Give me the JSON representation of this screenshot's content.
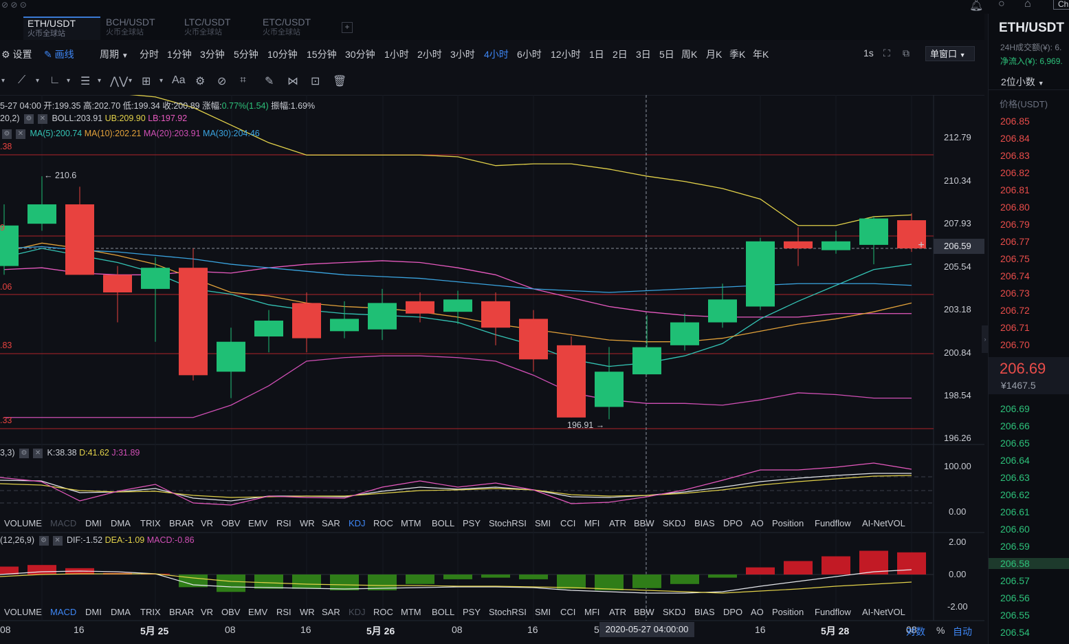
{
  "window_title": "Ch",
  "tabs": [
    {
      "pair": "ETH/USDT",
      "sub": "火币全球站",
      "active": true
    },
    {
      "pair": "BCH/USDT",
      "sub": "火币全球站",
      "active": false
    },
    {
      "pair": "LTC/USDT",
      "sub": "火币全球站",
      "active": false
    },
    {
      "pair": "ETC/USDT",
      "sub": "火币全球站",
      "active": false
    }
  ],
  "add_tab": "+",
  "toolbar": {
    "settings": "设置",
    "draw": "画线",
    "period": "周期",
    "one_s": "1s",
    "window_select": "单窗口"
  },
  "periods": [
    "分时",
    "1分钟",
    "3分钟",
    "5分钟",
    "10分钟",
    "15分钟",
    "30分钟",
    "1小时",
    "2小时",
    "3小时",
    "4小时",
    "6小时",
    "12小时",
    "1日",
    "2日",
    "3日",
    "5日",
    "周K",
    "月K",
    "季K",
    "年K"
  ],
  "selected_period": "4小时",
  "draw_tools": {
    "font": "Aa"
  },
  "ohlc": {
    "date": "5-27 04:00",
    "open_label": "开:",
    "open": "199.35",
    "high_label": "高:",
    "high": "202.70",
    "low_label": "低:",
    "low": "199.34",
    "close_label": "收:",
    "close": "200.89",
    "change_label": "涨幅:",
    "change": "0.77%(1.54)",
    "amp_label": "振幅:",
    "amp": "1.69%"
  },
  "boll": {
    "params": "20,2)",
    "boll": "BOLL:203.91",
    "ub": "UB:209.90",
    "lb": "LB:197.92"
  },
  "ma": {
    "ma5": "MA(5):200.74",
    "ma10": "MA(10):202.21",
    "ma20": "MA(20):203.91",
    "ma30": "MA(30):204.46"
  },
  "left_edge_labels": [
    ".38",
    "9",
    ".06",
    ".83",
    ".33"
  ],
  "price_axis": [
    "212.79",
    "210.34",
    "207.93",
    "206.59",
    "205.54",
    "203.18",
    "200.84",
    "198.54",
    "196.26"
  ],
  "current_price_tag": "206.59",
  "annot_high": "← 210.6",
  "annot_low": "196.91 →",
  "kdj": {
    "params": "3,3)",
    "k": "K:38.38",
    "d": "D:41.62",
    "j": "J:31.89",
    "axis": [
      "100.00",
      "0.00"
    ]
  },
  "macd": {
    "params": "(12,26,9)",
    "dif": "DIF:-1.52",
    "dea": "DEA:-1.09",
    "macd": "MACD:-0.86",
    "axis": [
      "2.00",
      "0.00",
      "-2.00"
    ]
  },
  "indicators": [
    "VOLUME",
    "MACD",
    "DMI",
    "DMA",
    "TRIX",
    "BRAR",
    "VR",
    "OBV",
    "EMV",
    "RSI",
    "WR",
    "SAR",
    "KDJ",
    "ROC",
    "MTM",
    "BOLL",
    "PSY",
    "StochRSI",
    "SMI",
    "CCI",
    "MFI",
    "ATR",
    "BBW",
    "SKDJ",
    "BIAS",
    "DPO",
    "AO",
    "Position",
    "Fundflow",
    "AI-NetVOL"
  ],
  "time_axis": [
    "08",
    "16",
    "5月 25",
    "08",
    "16",
    "5月 26",
    "08",
    "16",
    "5",
    "16",
    "5月 28",
    "08"
  ],
  "crosshair_time": "2020-05-27 04:00:00",
  "bottom_controls": {
    "log": "对数",
    "pct": "%",
    "auto": "自动"
  },
  "right_panel": {
    "pair": "ETH/USDT",
    "vol_label": "24H成交额(¥): 6.",
    "inflow_label": "净流入(¥): 6,969.",
    "decimals": "2位小数",
    "col_header": "价格(USDT)",
    "asks": [
      "206.85",
      "206.84",
      "206.83",
      "206.82",
      "206.81",
      "206.80",
      "206.79",
      "206.77",
      "206.75",
      "206.74",
      "206.73",
      "206.72",
      "206.71",
      "206.70"
    ],
    "last_price": "206.69",
    "last_cny": "¥1467.5",
    "bids": [
      "206.69",
      "206.66",
      "206.65",
      "206.64",
      "206.63",
      "206.62",
      "206.61",
      "206.60",
      "206.59",
      "206.58",
      "206.57",
      "206.56",
      "206.55",
      "206.54"
    ]
  },
  "colors": {
    "up": "#1fbf75",
    "down": "#e8423f",
    "boll_mid": "#e85ac0",
    "boll_up": "#e3d24a",
    "ma5": "#34c4b5",
    "ma10": "#e3a23a",
    "ma20": "#d04fb5",
    "ma30": "#3aa4e0"
  },
  "chart_data": {
    "type": "candlestick",
    "ylim": [
      195.5,
      213.5
    ],
    "candles": [
      {
        "o": 205.5,
        "c": 207.8,
        "h": 209.0,
        "l": 205.0
      },
      {
        "o": 207.9,
        "c": 209.0,
        "h": 210.6,
        "l": 207.5
      },
      {
        "o": 209.0,
        "c": 205.0,
        "h": 210.0,
        "l": 205.0
      },
      {
        "o": 205.0,
        "c": 204.0,
        "h": 205.5,
        "l": 202.3
      },
      {
        "o": 204.2,
        "c": 205.4,
        "h": 206.0,
        "l": 201.2
      },
      {
        "o": 205.4,
        "c": 199.3,
        "h": 206.5,
        "l": 199.0
      },
      {
        "o": 199.5,
        "c": 201.2,
        "h": 202.0,
        "l": 198.0
      },
      {
        "o": 201.5,
        "c": 202.4,
        "h": 203.0,
        "l": 200.6
      },
      {
        "o": 203.4,
        "c": 201.4,
        "h": 204.0,
        "l": 200.6
      },
      {
        "o": 201.8,
        "c": 202.5,
        "h": 203.5,
        "l": 201.4
      },
      {
        "o": 201.9,
        "c": 203.4,
        "h": 204.2,
        "l": 201.3
      },
      {
        "o": 203.5,
        "c": 202.8,
        "h": 204.0,
        "l": 202.3
      },
      {
        "o": 202.9,
        "c": 203.6,
        "h": 204.1,
        "l": 202.2
      },
      {
        "o": 203.5,
        "c": 202.0,
        "h": 204.0,
        "l": 201.0
      },
      {
        "o": 202.5,
        "c": 200.2,
        "h": 203.0,
        "l": 199.5
      },
      {
        "o": 201.0,
        "c": 196.9,
        "h": 201.5,
        "l": 196.9
      },
      {
        "o": 197.5,
        "c": 199.5,
        "h": 200.9,
        "l": 196.8
      },
      {
        "o": 199.35,
        "c": 200.89,
        "h": 202.7,
        "l": 199.34
      },
      {
        "o": 201.0,
        "c": 202.3,
        "h": 202.8,
        "l": 200.7
      },
      {
        "o": 202.3,
        "c": 203.6,
        "h": 204.5,
        "l": 202.0
      },
      {
        "o": 203.2,
        "c": 206.9,
        "h": 207.1,
        "l": 203.0
      },
      {
        "o": 206.9,
        "c": 206.5,
        "h": 207.7,
        "l": 205.5
      },
      {
        "o": 206.4,
        "c": 206.9,
        "h": 207.5,
        "l": 206.2
      },
      {
        "o": 206.7,
        "c": 208.2,
        "h": 208.3,
        "l": 205.6
      },
      {
        "o": 208.1,
        "c": 206.5,
        "h": 208.5,
        "l": 206.3
      }
    ]
  }
}
